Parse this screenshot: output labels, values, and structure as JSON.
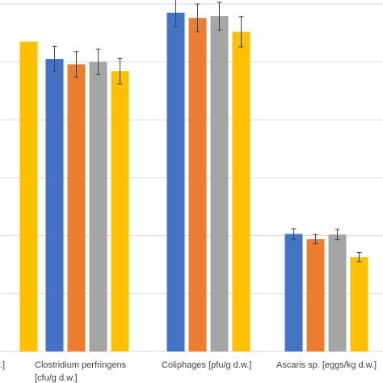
{
  "chart_data": {
    "type": "bar",
    "title": "",
    "xlabel": "",
    "ylabel": "",
    "grid": true,
    "ylim": [
      0,
      6
    ],
    "gridlines": [
      1,
      2,
      3,
      4,
      5,
      6
    ],
    "categories": [
      {
        "lines": [
          "d.w.]"
        ]
      },
      {
        "lines": [
          "Clostridium perfringens",
          "[cfu/g d.w.]"
        ]
      },
      {
        "lines": [
          "Coliphages [pfu/g d.w.]"
        ]
      },
      {
        "lines": [
          "Ascaris sp. [eggs/kg d.w.]"
        ]
      }
    ],
    "series": [
      {
        "color": "#4472C4",
        "values": [
          null,
          5.05,
          5.85,
          2.03
        ],
        "errors": [
          null,
          0.22,
          0.24,
          0.09
        ]
      },
      {
        "color": "#ED7D31",
        "values": [
          null,
          4.96,
          5.76,
          1.94
        ],
        "errors": [
          null,
          0.22,
          0.24,
          0.08
        ]
      },
      {
        "color": "#A5A5A5",
        "values": [
          null,
          5.0,
          5.79,
          2.02
        ],
        "errors": [
          null,
          0.22,
          0.24,
          0.09
        ]
      },
      {
        "color": "#FFC000",
        "values": [
          5.35,
          4.84,
          5.52,
          1.63
        ],
        "errors": [
          null,
          0.22,
          0.26,
          0.08
        ]
      }
    ]
  }
}
